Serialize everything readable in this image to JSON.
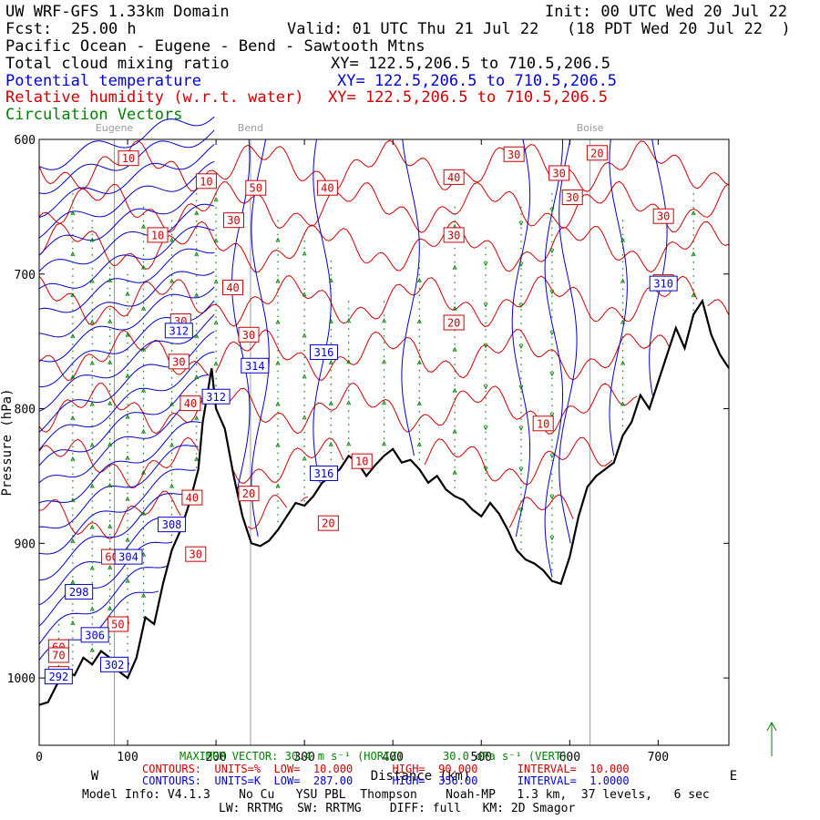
{
  "header": {
    "title": "UW WRF-GFS 1.33km Domain",
    "init": "Init: 00 UTC Wed 20 Jul 22",
    "fcst_label": "Fcst:",
    "fcst_value": "25.00 h",
    "valid": "Valid: 01 UTC Thu 21 Jul 22   (18 PDT Wed 20 Jul 22  )",
    "region": "Pacific Ocean - Eugene - Bend - Sawtooth Mtns",
    "field1": "Total cloud mixing ratio",
    "field1_xy": "XY= 122.5,206.5 to 710.5,206.5",
    "field2": "Potential temperature",
    "field2_xy": "XY= 122.5,206.5 to 710.5,206.5",
    "field3": "Relative humidity (w.r.t. water)",
    "field3_xy": "XY= 122.5,206.5 to 710.5,206.5",
    "field4": "Circulation Vectors"
  },
  "colors": {
    "theta": "#0000cc",
    "rh": "#cc0000",
    "vectors": "#008000",
    "terrain": "#000000",
    "city_lines": "#9a9a9a"
  },
  "chart_data": {
    "type": "line",
    "title": "UW WRF-GFS 1.33km Domain",
    "xlabel": "Distance (km)",
    "ylabel": "Pressure (hPa)",
    "xlim": [
      0,
      780
    ],
    "ylim": [
      1050,
      600
    ],
    "x_ticks": [
      "0",
      "100",
      "200",
      "300",
      "400",
      "500",
      "600",
      "700"
    ],
    "y_ticks": [
      "600",
      "700",
      "800",
      "900",
      "1000"
    ],
    "x_end_labels": {
      "left": "W",
      "right": "E"
    },
    "cities": [
      {
        "name": "Eugene",
        "x": 85
      },
      {
        "name": "Bend",
        "x": 239
      },
      {
        "name": "Boise",
        "x": 623
      }
    ],
    "terrain": {
      "x": [
        0,
        10,
        20,
        30,
        40,
        50,
        60,
        70,
        80,
        90,
        100,
        110,
        120,
        130,
        140,
        150,
        160,
        170,
        180,
        185,
        190,
        195,
        200,
        210,
        220,
        230,
        240,
        250,
        260,
        270,
        280,
        290,
        300,
        310,
        320,
        330,
        340,
        350,
        360,
        370,
        380,
        390,
        400,
        410,
        420,
        430,
        440,
        450,
        460,
        470,
        480,
        490,
        500,
        510,
        520,
        530,
        540,
        550,
        560,
        570,
        580,
        590,
        600,
        610,
        620,
        630,
        640,
        650,
        660,
        670,
        680,
        690,
        700,
        710,
        720,
        730,
        740,
        750,
        760,
        770,
        780
      ],
      "p": [
        1020,
        1018,
        1005,
        995,
        998,
        985,
        990,
        980,
        985,
        995,
        1000,
        985,
        955,
        960,
        930,
        905,
        890,
        870,
        845,
        810,
        790,
        770,
        800,
        815,
        850,
        880,
        900,
        902,
        898,
        890,
        880,
        870,
        872,
        865,
        855,
        850,
        845,
        835,
        840,
        850,
        842,
        835,
        830,
        840,
        838,
        845,
        855,
        850,
        860,
        865,
        868,
        875,
        880,
        870,
        878,
        890,
        905,
        912,
        915,
        920,
        928,
        930,
        910,
        880,
        858,
        850,
        845,
        840,
        820,
        810,
        790,
        800,
        780,
        760,
        740,
        755,
        730,
        720,
        745,
        760,
        770
      ]
    },
    "potential_temperature": {
      "units": "K",
      "low": "287.00",
      "high": "356.00",
      "interval": "1.0000",
      "labels": [
        {
          "text": "292",
          "x": 22,
          "p": 999
        },
        {
          "text": "302",
          "x": 85,
          "p": 990
        },
        {
          "text": "306",
          "x": 63,
          "p": 968
        },
        {
          "text": "298",
          "x": 45,
          "p": 936
        },
        {
          "text": "304",
          "x": 101,
          "p": 910
        },
        {
          "text": "308",
          "x": 150,
          "p": 886
        },
        {
          "text": "312",
          "x": 200,
          "p": 791
        },
        {
          "text": "314",
          "x": 244,
          "p": 768
        },
        {
          "text": "316",
          "x": 322,
          "p": 758
        },
        {
          "text": "316",
          "x": 322,
          "p": 848
        },
        {
          "text": "312",
          "x": 158,
          "p": 742
        },
        {
          "text": "310",
          "x": 706,
          "p": 707
        }
      ]
    },
    "relative_humidity": {
      "units": "%",
      "low": "10.000",
      "high": "90.000",
      "interval": "10.000",
      "labels": [
        {
          "text": "10",
          "x": 101,
          "p": 614
        },
        {
          "text": "10",
          "x": 189,
          "p": 631
        },
        {
          "text": "50",
          "x": 245,
          "p": 636
        },
        {
          "text": "40",
          "x": 326,
          "p": 636
        },
        {
          "text": "30",
          "x": 220,
          "p": 660
        },
        {
          "text": "10",
          "x": 134,
          "p": 671
        },
        {
          "text": "40",
          "x": 219,
          "p": 710
        },
        {
          "text": "30",
          "x": 160,
          "p": 735
        },
        {
          "text": "30",
          "x": 237,
          "p": 745
        },
        {
          "text": "30",
          "x": 158,
          "p": 765
        },
        {
          "text": "40",
          "x": 171,
          "p": 796
        },
        {
          "text": "40",
          "x": 173,
          "p": 866
        },
        {
          "text": "20",
          "x": 237,
          "p": 863
        },
        {
          "text": "30",
          "x": 177,
          "p": 908
        },
        {
          "text": "20",
          "x": 327,
          "p": 885
        },
        {
          "text": "10",
          "x": 365,
          "p": 839
        },
        {
          "text": "60",
          "x": 82,
          "p": 910
        },
        {
          "text": "50",
          "x": 89,
          "p": 960
        },
        {
          "text": "30",
          "x": 537,
          "p": 611
        },
        {
          "text": "30",
          "x": 588,
          "p": 625
        },
        {
          "text": "30",
          "x": 603,
          "p": 643
        },
        {
          "text": "20",
          "x": 631,
          "p": 610
        },
        {
          "text": "40",
          "x": 469,
          "p": 628
        },
        {
          "text": "30",
          "x": 469,
          "p": 671
        },
        {
          "text": "20",
          "x": 469,
          "p": 736
        },
        {
          "text": "10",
          "x": 570,
          "p": 811
        },
        {
          "text": "30",
          "x": 706,
          "p": 657
        },
        {
          "text": "30",
          "x": 706,
          "p": 706
        },
        {
          "text": "60",
          "x": 22,
          "p": 977
        },
        {
          "text": "70",
          "x": 22,
          "p": 983
        },
        {
          "text": "80",
          "x": 22,
          "p": 997
        }
      ]
    },
    "vector_columns": [
      {
        "x": 22,
        "p_top": 960,
        "dir": "up"
      },
      {
        "x": 38,
        "p_top": 640,
        "dir": "up"
      },
      {
        "x": 60,
        "p_top": 660,
        "dir": "up"
      },
      {
        "x": 80,
        "p_top": 690,
        "dir": "up"
      },
      {
        "x": 100,
        "p_top": 700,
        "dir": "up"
      },
      {
        "x": 118,
        "p_top": 650,
        "dir": "up"
      },
      {
        "x": 150,
        "p_top": 660,
        "dir": "up"
      },
      {
        "x": 178,
        "p_top": 640,
        "dir": "up"
      },
      {
        "x": 200,
        "p_top": 630,
        "dir": "up"
      },
      {
        "x": 270,
        "p_top": 660,
        "dir": "up"
      },
      {
        "x": 300,
        "p_top": 670,
        "dir": "up"
      },
      {
        "x": 330,
        "p_top": 690,
        "dir": "up"
      },
      {
        "x": 350,
        "p_top": 720,
        "dir": "up"
      },
      {
        "x": 390,
        "p_top": 720,
        "dir": "up"
      },
      {
        "x": 430,
        "p_top": 690,
        "dir": "up"
      },
      {
        "x": 470,
        "p_top": 650,
        "dir": "up"
      },
      {
        "x": 505,
        "p_top": 680,
        "dir": "down"
      },
      {
        "x": 545,
        "p_top": 650,
        "dir": "down"
      },
      {
        "x": 580,
        "p_top": 640,
        "dir": "down"
      },
      {
        "x": 660,
        "p_top": 660,
        "dir": "up"
      },
      {
        "x": 740,
        "p_top": 640,
        "dir": "up"
      }
    ]
  },
  "footer": {
    "max_vector": "MAXIMUM VECTOR: 30.4 m s⁻¹ (HORIZ)      30.0 dPa s⁻¹ (VERT)",
    "contours_red": "CONTOURS:  UNITS=%  LOW=  10.000      HIGH=  90.000      INTERVAL=  10.000",
    "contours_blue": "CONTOURS:  UNITS=K  LOW=  287.00      HIGH=  356.00      INTERVAL=  1.0000",
    "model_info": "Model Info: V4.1.3    No Cu   YSU PBL  Thompson    Noah-MP   1.3 km,  37 levels,   6 sec",
    "model_info2": "LW: RRTMG  SW: RRTMG    DIFF: full   KM: 2D Smagor"
  }
}
